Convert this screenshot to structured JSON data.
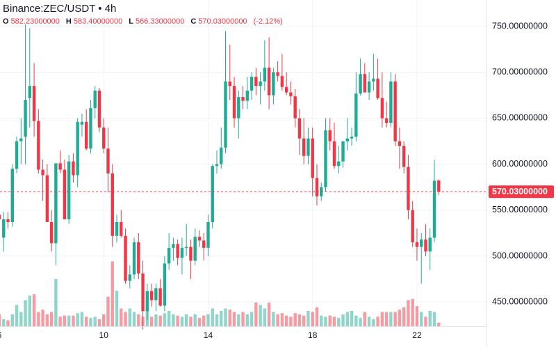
{
  "chart_data": {
    "type": "candlestick",
    "title": "Binance:ZEC/USDT • 4h",
    "header": [
      {
        "label": "O",
        "value": "582.23000000"
      },
      {
        "label": "H",
        "value": "583.40000000"
      },
      {
        "label": "L",
        "value": "566.33000000"
      },
      {
        "label": "C",
        "value": "570.03000000"
      }
    ],
    "change": "(-2.12%)",
    "categories": [
      "6",
      null,
      null,
      null,
      null,
      null,
      null,
      null,
      null,
      null,
      null,
      null,
      null,
      null,
      null,
      null,
      null,
      null,
      null,
      null,
      null,
      null,
      null,
      null,
      "10",
      null,
      null,
      null,
      null,
      null,
      null,
      null,
      null,
      null,
      null,
      null,
      null,
      null,
      null,
      null,
      null,
      null,
      null,
      null,
      null,
      null,
      null,
      null,
      "14",
      null,
      null,
      null,
      null,
      null,
      null,
      null,
      null,
      null,
      null,
      null,
      null,
      null,
      null,
      null,
      null,
      null,
      null,
      null,
      null,
      null,
      null,
      null,
      "18",
      null,
      null,
      null,
      null,
      null,
      null,
      null,
      null,
      null,
      null,
      null,
      null,
      null,
      null,
      null,
      null,
      null,
      null,
      null,
      null,
      null,
      null,
      null,
      "22",
      null,
      null,
      null,
      null,
      null
    ],
    "open": [
      545,
      520,
      540,
      537,
      595,
      625,
      630,
      672,
      685,
      647,
      594,
      588,
      537,
      514,
      601,
      594,
      540,
      603,
      588,
      643,
      646,
      617,
      661,
      680,
      640,
      617,
      590,
      522,
      537,
      522,
      473,
      480,
      515,
      481,
      440,
      462,
      452,
      465,
      446,
      492,
      509,
      513,
      498,
      509,
      510,
      495,
      521,
      517,
      509,
      537,
      598,
      600,
      618,
      690,
      685,
      650,
      673,
      669,
      680,
      695,
      685,
      690,
      705,
      675,
      700,
      696,
      684,
      678,
      674,
      650,
      628,
      609,
      628,
      585,
      565,
      575,
      637,
      625,
      598,
      603,
      625,
      628,
      630,
      677,
      698,
      678,
      690,
      693,
      672,
      650,
      645,
      690,
      625,
      620,
      597,
      550,
      515,
      510,
      518,
      505,
      520,
      582.23
    ],
    "high": [
      560,
      548,
      548,
      600,
      630,
      650,
      752,
      748,
      710,
      660,
      605,
      600,
      550,
      600,
      615,
      605,
      610,
      612,
      650,
      655,
      660,
      670,
      685,
      683,
      650,
      640,
      600,
      545,
      550,
      530,
      490,
      520,
      525,
      495,
      470,
      470,
      470,
      475,
      500,
      525,
      520,
      518,
      520,
      535,
      518,
      530,
      528,
      525,
      545,
      600,
      615,
      640,
      745,
      730,
      695,
      680,
      685,
      695,
      700,
      705,
      700,
      735,
      738,
      705,
      712,
      720,
      700,
      690,
      682,
      660,
      650,
      640,
      640,
      600,
      580,
      650,
      650,
      645,
      620,
      625,
      650,
      640,
      700,
      715,
      710,
      700,
      720,
      715,
      700,
      668,
      700,
      698,
      640,
      625,
      610,
      560,
      530,
      525,
      535,
      530,
      605,
      583.4
    ],
    "low": [
      520,
      505,
      530,
      532,
      590,
      600,
      600,
      640,
      630,
      590,
      560,
      540,
      505,
      490,
      590,
      540,
      535,
      580,
      575,
      630,
      615,
      612,
      650,
      635,
      612,
      570,
      510,
      515,
      520,
      470,
      465,
      475,
      475,
      420,
      430,
      445,
      440,
      445,
      440,
      485,
      495,
      490,
      480,
      500,
      475,
      490,
      510,
      495,
      500,
      530,
      590,
      595,
      612,
      670,
      640,
      628,
      660,
      660,
      670,
      675,
      665,
      680,
      660,
      665,
      690,
      680,
      675,
      665,
      640,
      610,
      600,
      600,
      565,
      555,
      560,
      570,
      615,
      595,
      590,
      596,
      615,
      620,
      625,
      675,
      678,
      670,
      680,
      670,
      640,
      640,
      640,
      620,
      595,
      590,
      540,
      510,
      495,
      470,
      500,
      485,
      515,
      566.33
    ],
    "close": [
      540,
      540,
      537,
      595,
      625,
      628,
      670,
      685,
      647,
      594,
      588,
      537,
      514,
      601,
      594,
      540,
      603,
      588,
      646,
      646,
      617,
      661,
      680,
      640,
      617,
      590,
      522,
      537,
      522,
      473,
      480,
      515,
      481,
      440,
      462,
      452,
      465,
      446,
      492,
      509,
      513,
      498,
      509,
      510,
      495,
      521,
      517,
      509,
      537,
      598,
      600,
      618,
      690,
      685,
      650,
      673,
      669,
      680,
      695,
      685,
      690,
      705,
      675,
      700,
      696,
      684,
      678,
      674,
      650,
      628,
      609,
      628,
      585,
      565,
      575,
      637,
      625,
      598,
      603,
      625,
      628,
      630,
      677,
      698,
      678,
      690,
      693,
      672,
      650,
      645,
      690,
      625,
      620,
      597,
      550,
      515,
      510,
      518,
      505,
      520,
      582,
      570.03
    ],
    "volume": [
      10,
      6,
      5,
      10,
      18,
      12,
      22,
      26,
      27,
      12,
      14,
      10,
      12,
      40,
      8,
      9,
      9,
      9,
      11,
      12,
      8,
      7,
      8,
      6,
      10,
      25,
      55,
      30,
      15,
      12,
      15,
      12,
      10,
      8,
      15,
      8,
      10,
      9,
      11,
      13,
      10,
      9,
      8,
      10,
      8,
      10,
      7,
      9,
      10,
      15,
      10,
      13,
      15,
      14,
      12,
      10,
      12,
      10,
      12,
      20,
      18,
      15,
      20,
      12,
      10,
      11,
      9,
      8,
      11,
      10,
      9,
      13,
      12,
      16,
      9,
      8,
      9,
      8,
      7,
      10,
      12,
      13,
      9,
      7,
      12,
      8,
      6,
      8,
      12,
      12,
      12,
      12,
      14,
      16,
      22,
      23,
      17,
      12,
      8,
      13,
      12,
      3
    ],
    "up_color": "#22ab94",
    "down_color": "#f23645",
    "ylim": [
      423.7,
      778.7
    ],
    "yticks": [
      {
        "value": 450,
        "label": "450.00000000"
      },
      {
        "value": 500,
        "label": "500.00000000"
      },
      {
        "value": 550,
        "label": "550.00000000"
      },
      {
        "value": 600,
        "label": "600.00000000"
      },
      {
        "value": 650,
        "label": "650.00000000"
      },
      {
        "value": 700,
        "label": "700.00000000"
      },
      {
        "value": 750,
        "label": "750.00000000"
      }
    ],
    "grid": true
  }
}
